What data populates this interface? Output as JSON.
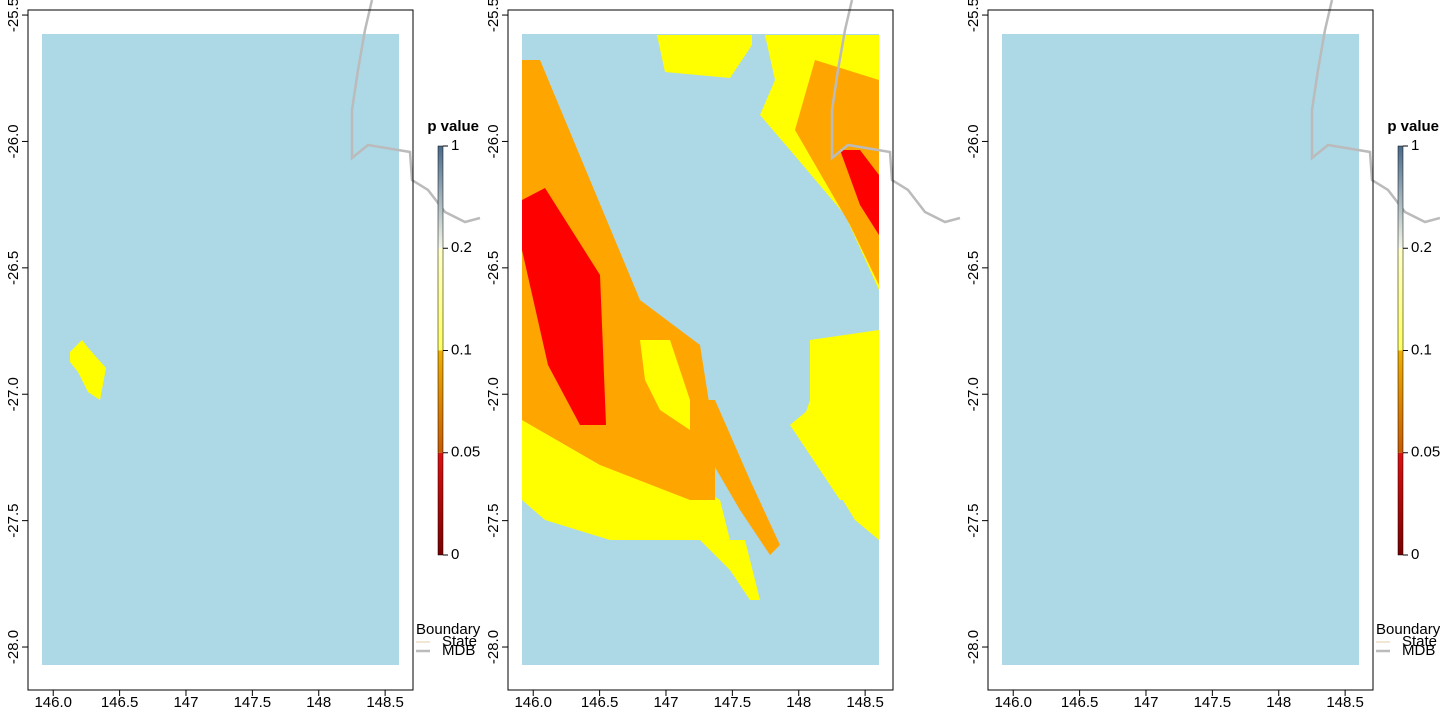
{
  "chart_data": [
    {
      "type": "map",
      "xlim": [
        145.81,
        148.71
      ],
      "ylim": [
        -28.17,
        -25.48
      ],
      "xticks": [
        {
          "value": 146,
          "label": "146.0"
        },
        146.5,
        147,
        147.5,
        148,
        148.5
      ],
      "yticks": [
        -25.5,
        {
          "value": -26,
          "label": "-26.0"
        },
        -26.5,
        {
          "value": -27,
          "label": "-27.0"
        },
        -27.5,
        {
          "value": -28,
          "label": "-28.0"
        }
      ],
      "colorbar": {
        "title": "p value",
        "ticks": [
          0,
          0.05,
          0.1,
          0.2,
          1
        ],
        "segment_colors": [
          [
            "#7a0000",
            "#e01010"
          ],
          [
            "#c85a00",
            "#f0b000"
          ],
          [
            "#ffff60",
            "#ffffc8"
          ],
          [
            "#f4f8e8",
            "#4a6a8c"
          ]
        ]
      },
      "boundary_legend": {
        "title": "Boundary",
        "items": [
          {
            "name": "State",
            "color": "#e0cfa8"
          },
          {
            "name": "MDB",
            "color": "#bbbbbb"
          }
        ]
      }
    },
    {
      "type": "map",
      "xlim": [
        145.81,
        148.71
      ],
      "ylim": [
        -28.17,
        -25.48
      ],
      "xticks": [
        {
          "value": 146,
          "label": "146.0"
        },
        146.5,
        147,
        147.5,
        148,
        148.5
      ],
      "yticks": [
        -25.5,
        {
          "value": -26,
          "label": "-26.0"
        },
        -26.5,
        {
          "value": -27,
          "label": "-27.0"
        },
        -27.5,
        {
          "value": -28,
          "label": "-28.0"
        }
      ]
    },
    {
      "type": "map",
      "xlim": [
        145.81,
        148.71
      ],
      "ylim": [
        -28.17,
        -25.48
      ],
      "xticks": [
        {
          "value": 146,
          "label": "146.0"
        },
        146.5,
        147,
        147.5,
        148,
        148.5
      ],
      "yticks": [
        -25.5,
        {
          "value": -26,
          "label": "-26.0"
        },
        -26.5,
        {
          "value": -27,
          "label": "-27.0"
        },
        -27.5,
        {
          "value": -28,
          "label": "-28.0"
        }
      ],
      "colorbar": {
        "title": "p value",
        "ticks": [
          0,
          0.05,
          0.1,
          0.2,
          1
        ],
        "segment_colors": [
          [
            "#7a0000",
            "#e01010"
          ],
          [
            "#c85a00",
            "#f0b000"
          ],
          [
            "#ffff60",
            "#ffffc8"
          ],
          [
            "#f4f8e8",
            "#4a6a8c"
          ]
        ]
      },
      "boundary_legend": {
        "title": "Boundary",
        "items": [
          {
            "name": "State",
            "color": "#e0cfa8"
          },
          {
            "name": "MDB",
            "color": "#bbbbbb"
          }
        ]
      }
    }
  ]
}
